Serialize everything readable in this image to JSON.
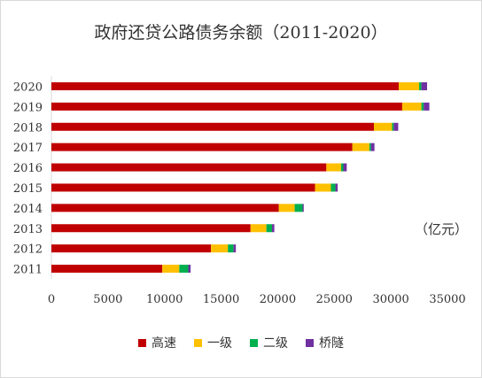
{
  "chart_data": {
    "type": "bar",
    "orientation": "horizontal",
    "stacked": true,
    "title": "政府还贷公路债务余额（2011-2020）",
    "unit_label": "（亿元）",
    "categories": [
      "2020",
      "2019",
      "2018",
      "2017",
      "2016",
      "2015",
      "2014",
      "2013",
      "2012",
      "2011"
    ],
    "series": [
      {
        "name": "高速",
        "color": "#c00000",
        "values": [
          30700,
          31000,
          28500,
          26600,
          24300,
          23300,
          20100,
          17600,
          14100,
          9800
        ]
      },
      {
        "name": "一级",
        "color": "#ffc000",
        "values": [
          1800,
          1700,
          1600,
          1500,
          1300,
          1400,
          1400,
          1400,
          1500,
          1500
        ]
      },
      {
        "name": "二级",
        "color": "#00b050",
        "values": [
          200,
          200,
          150,
          150,
          200,
          400,
          700,
          500,
          500,
          800
        ]
      },
      {
        "name": "桥隧",
        "color": "#7030a0",
        "values": [
          500,
          500,
          400,
          300,
          300,
          200,
          100,
          200,
          200,
          200
        ]
      }
    ],
    "xlim": [
      0,
      35000
    ],
    "xticks": [
      "0",
      "5000",
      "10000",
      "15000",
      "20000",
      "25000",
      "30000",
      "35000"
    ],
    "grid": false,
    "legend_position": "bottom"
  }
}
